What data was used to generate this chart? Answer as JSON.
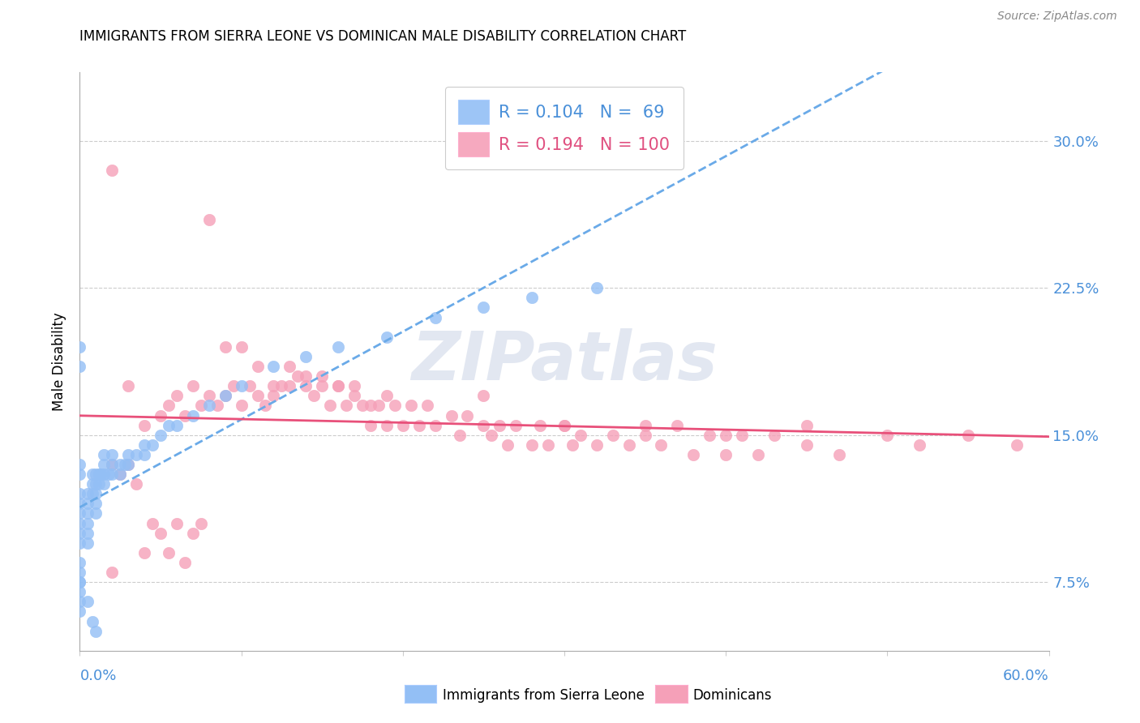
{
  "title": "IMMIGRANTS FROM SIERRA LEONE VS DOMINICAN MALE DISABILITY CORRELATION CHART",
  "source": "Source: ZipAtlas.com",
  "ylabel": "Male Disability",
  "yticks": [
    "7.5%",
    "15.0%",
    "22.5%",
    "30.0%"
  ],
  "ytick_values": [
    0.075,
    0.15,
    0.225,
    0.3
  ],
  "xrange": [
    0.0,
    0.6
  ],
  "yrange": [
    0.04,
    0.335
  ],
  "legend_sl_R": 0.104,
  "legend_sl_N": 69,
  "legend_dom_R": 0.194,
  "legend_dom_N": 100,
  "sierra_leone_color": "#93bff5",
  "dominican_color": "#f5a0b8",
  "sierra_leone_line_color": "#6aaae8",
  "dominican_line_color": "#e8507a",
  "watermark": "ZIPatlas",
  "sl_x": [
    0.0,
    0.0,
    0.0,
    0.0,
    0.0,
    0.0,
    0.0,
    0.0,
    0.0,
    0.0,
    0.0,
    0.0,
    0.0,
    0.0,
    0.005,
    0.005,
    0.005,
    0.005,
    0.005,
    0.005,
    0.008,
    0.008,
    0.008,
    0.01,
    0.01,
    0.01,
    0.01,
    0.01,
    0.012,
    0.012,
    0.013,
    0.015,
    0.015,
    0.015,
    0.015,
    0.018,
    0.02,
    0.02,
    0.02,
    0.025,
    0.025,
    0.028,
    0.03,
    0.03,
    0.035,
    0.04,
    0.04,
    0.045,
    0.05,
    0.055,
    0.06,
    0.07,
    0.08,
    0.09,
    0.1,
    0.12,
    0.14,
    0.16,
    0.19,
    0.22,
    0.25,
    0.28,
    0.32,
    0.0,
    0.0,
    0.0,
    0.005,
    0.008,
    0.01
  ],
  "sl_y": [
    0.13,
    0.135,
    0.12,
    0.115,
    0.11,
    0.105,
    0.1,
    0.095,
    0.085,
    0.08,
    0.075,
    0.07,
    0.065,
    0.06,
    0.12,
    0.115,
    0.11,
    0.105,
    0.1,
    0.095,
    0.13,
    0.125,
    0.12,
    0.13,
    0.125,
    0.12,
    0.115,
    0.11,
    0.13,
    0.125,
    0.13,
    0.14,
    0.135,
    0.13,
    0.125,
    0.13,
    0.14,
    0.135,
    0.13,
    0.135,
    0.13,
    0.135,
    0.14,
    0.135,
    0.14,
    0.145,
    0.14,
    0.145,
    0.15,
    0.155,
    0.155,
    0.16,
    0.165,
    0.17,
    0.175,
    0.185,
    0.19,
    0.195,
    0.2,
    0.21,
    0.215,
    0.22,
    0.225,
    0.195,
    0.185,
    0.075,
    0.065,
    0.055,
    0.05
  ],
  "dom_x": [
    0.02,
    0.03,
    0.04,
    0.05,
    0.055,
    0.06,
    0.065,
    0.07,
    0.075,
    0.08,
    0.085,
    0.09,
    0.095,
    0.1,
    0.105,
    0.11,
    0.115,
    0.12,
    0.125,
    0.13,
    0.135,
    0.14,
    0.145,
    0.15,
    0.155,
    0.16,
    0.165,
    0.17,
    0.175,
    0.18,
    0.185,
    0.19,
    0.195,
    0.2,
    0.205,
    0.21,
    0.215,
    0.22,
    0.23,
    0.235,
    0.24,
    0.25,
    0.255,
    0.26,
    0.265,
    0.27,
    0.28,
    0.285,
    0.29,
    0.3,
    0.305,
    0.31,
    0.32,
    0.33,
    0.34,
    0.35,
    0.36,
    0.37,
    0.38,
    0.39,
    0.4,
    0.41,
    0.42,
    0.43,
    0.45,
    0.47,
    0.5,
    0.52,
    0.55,
    0.58,
    0.02,
    0.025,
    0.03,
    0.035,
    0.04,
    0.045,
    0.05,
    0.055,
    0.06,
    0.065,
    0.07,
    0.075,
    0.08,
    0.09,
    0.1,
    0.11,
    0.12,
    0.13,
    0.14,
    0.15,
    0.16,
    0.17,
    0.18,
    0.19,
    0.02,
    0.25,
    0.3,
    0.35,
    0.4,
    0.45
  ],
  "dom_y": [
    0.285,
    0.175,
    0.155,
    0.16,
    0.165,
    0.17,
    0.16,
    0.175,
    0.165,
    0.17,
    0.165,
    0.17,
    0.175,
    0.165,
    0.175,
    0.17,
    0.165,
    0.17,
    0.175,
    0.175,
    0.18,
    0.175,
    0.17,
    0.175,
    0.165,
    0.175,
    0.165,
    0.17,
    0.165,
    0.155,
    0.165,
    0.155,
    0.165,
    0.155,
    0.165,
    0.155,
    0.165,
    0.155,
    0.16,
    0.15,
    0.16,
    0.155,
    0.15,
    0.155,
    0.145,
    0.155,
    0.145,
    0.155,
    0.145,
    0.155,
    0.145,
    0.15,
    0.145,
    0.15,
    0.145,
    0.15,
    0.145,
    0.155,
    0.14,
    0.15,
    0.14,
    0.15,
    0.14,
    0.15,
    0.145,
    0.14,
    0.15,
    0.145,
    0.15,
    0.145,
    0.135,
    0.13,
    0.135,
    0.125,
    0.09,
    0.105,
    0.1,
    0.09,
    0.105,
    0.085,
    0.1,
    0.105,
    0.26,
    0.195,
    0.195,
    0.185,
    0.175,
    0.185,
    0.18,
    0.18,
    0.175,
    0.175,
    0.165,
    0.17,
    0.08,
    0.17,
    0.155,
    0.155,
    0.15,
    0.155
  ]
}
